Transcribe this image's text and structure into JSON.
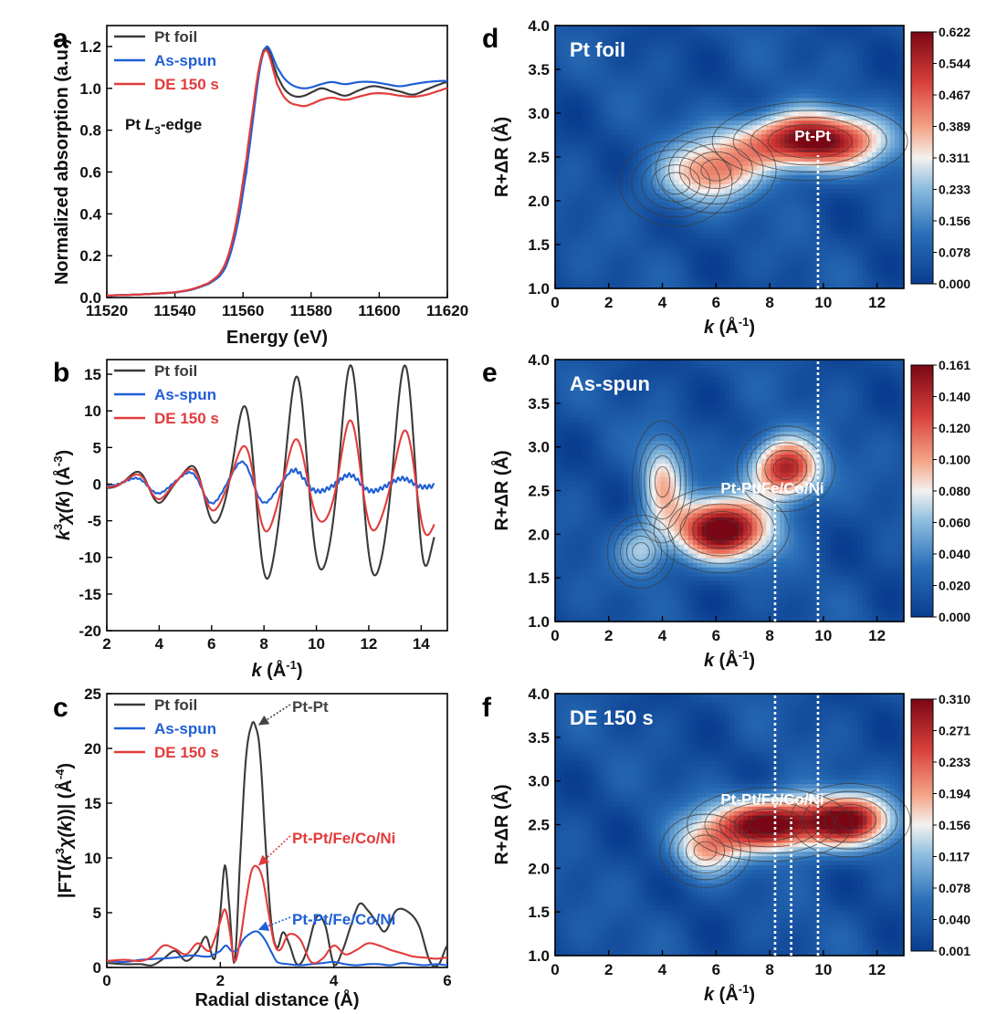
{
  "colors": {
    "pt_foil": "#3a3a3a",
    "as_spun": "#1f5fd6",
    "de_150": "#e23b3b",
    "anno_black": "#444444",
    "anno_red": "#e23b3b",
    "anno_blue": "#1f5fd6"
  },
  "chart_data": [
    {
      "panel": "a",
      "type": "line",
      "xlabel": "Energy (eV)",
      "ylabel": "Normalized absorption (a.u.)",
      "xlim": [
        11520,
        11620
      ],
      "ylim": [
        0.0,
        1.3
      ],
      "xticks": [
        "11520",
        "11540",
        "11560",
        "11580",
        "11600",
        "11620"
      ],
      "yticks": [
        "0.0",
        "0.2",
        "0.4",
        "0.6",
        "0.8",
        "1.0",
        "1.2"
      ],
      "legend": "top-left",
      "annotation": {
        "prefix": "Pt ",
        "italic": "L",
        "sub": "3",
        "suffix": "-edge"
      },
      "series": [
        {
          "name": "Pt foil",
          "x": [
            11520,
            11530,
            11540,
            11545,
            11550,
            11553,
            11555,
            11557,
            11559,
            11561,
            11562,
            11563,
            11564,
            11565,
            11566,
            11567,
            11568,
            11569,
            11570,
            11572,
            11574,
            11576,
            11578,
            11580,
            11583,
            11586,
            11590,
            11594,
            11598,
            11602,
            11606,
            11610,
            11614,
            11618,
            11620
          ],
          "y": [
            0.01,
            0.015,
            0.025,
            0.04,
            0.07,
            0.11,
            0.17,
            0.28,
            0.44,
            0.65,
            0.78,
            0.9,
            1.02,
            1.12,
            1.18,
            1.19,
            1.16,
            1.11,
            1.06,
            1.0,
            0.97,
            0.96,
            0.965,
            0.98,
            1.0,
            0.985,
            0.965,
            0.99,
            1.01,
            1.0,
            0.985,
            0.97,
            0.995,
            1.02,
            1.03
          ]
        },
        {
          "name": "As-spun",
          "x": [
            11520,
            11530,
            11540,
            11545,
            11550,
            11553,
            11555,
            11557,
            11559,
            11561,
            11562,
            11563,
            11564,
            11565,
            11566,
            11567,
            11568,
            11569,
            11570,
            11572,
            11574,
            11576,
            11578,
            11580,
            11583,
            11586,
            11590,
            11594,
            11598,
            11602,
            11606,
            11610,
            11614,
            11618,
            11620
          ],
          "y": [
            0.01,
            0.015,
            0.024,
            0.038,
            0.066,
            0.1,
            0.15,
            0.25,
            0.4,
            0.6,
            0.73,
            0.86,
            0.99,
            1.1,
            1.17,
            1.2,
            1.18,
            1.14,
            1.1,
            1.05,
            1.02,
            1.005,
            1.0,
            1.005,
            1.02,
            1.03,
            1.02,
            1.03,
            1.03,
            1.02,
            1.01,
            1.02,
            1.03,
            1.035,
            1.035
          ]
        },
        {
          "name": "DE 150 s",
          "x": [
            11520,
            11530,
            11540,
            11545,
            11550,
            11553,
            11555,
            11557,
            11559,
            11561,
            11562,
            11563,
            11564,
            11565,
            11566,
            11567,
            11568,
            11569,
            11570,
            11572,
            11574,
            11576,
            11578,
            11580,
            11583,
            11586,
            11590,
            11594,
            11598,
            11602,
            11606,
            11610,
            11614,
            11618,
            11620
          ],
          "y": [
            0.01,
            0.015,
            0.025,
            0.04,
            0.07,
            0.11,
            0.17,
            0.28,
            0.45,
            0.66,
            0.79,
            0.91,
            1.03,
            1.12,
            1.17,
            1.18,
            1.14,
            1.08,
            1.02,
            0.96,
            0.93,
            0.92,
            0.915,
            0.925,
            0.945,
            0.955,
            0.945,
            0.96,
            0.975,
            0.975,
            0.965,
            0.96,
            0.97,
            0.99,
            1.0
          ]
        }
      ]
    },
    {
      "panel": "b",
      "type": "line",
      "xlabel": "k (Å-1)",
      "xlabel_parts": {
        "italic": "k",
        "unit": " (Å",
        "sup": "-1",
        "close": ")"
      },
      "ylabel_parts": {
        "k": "k",
        "sup1": "3",
        "chi": "χ(",
        "k2": "k",
        "rest": ") (Å",
        "sup2": "-3",
        "close": ")"
      },
      "xlim": [
        2,
        15
      ],
      "ylim": [
        -20,
        17
      ],
      "xticks": [
        "2",
        "4",
        "6",
        "8",
        "10",
        "12",
        "14"
      ],
      "yticks": [
        "-20",
        "-15",
        "-10",
        "-5",
        "0",
        "5",
        "10",
        "15"
      ],
      "legend": "top-left",
      "series": [
        {
          "name": "Pt foil",
          "amp": [
            [
              2,
              0.5
            ],
            [
              3,
              1.5
            ],
            [
              4,
              2.5
            ],
            [
              5,
              2
            ],
            [
              6,
              5
            ],
            [
              7,
              9
            ],
            [
              8,
              13
            ],
            [
              9,
              14
            ],
            [
              10,
              12
            ],
            [
              11,
              15
            ],
            [
              12,
              13.5
            ],
            [
              13,
              14
            ],
            [
              14,
              15
            ],
            [
              14.5,
              9
            ]
          ],
          "freq": 3.05,
          "phase": -1.4,
          "x_end": 14.5
        },
        {
          "name": "As-spun",
          "amp": [
            [
              2,
              0.3
            ],
            [
              3,
              0.8
            ],
            [
              4,
              1.2
            ],
            [
              5,
              1.5
            ],
            [
              6,
              2.5
            ],
            [
              7,
              3
            ],
            [
              8,
              2.5
            ],
            [
              9,
              2
            ],
            [
              10,
              1
            ],
            [
              11,
              1.2
            ],
            [
              12,
              1
            ],
            [
              13,
              0.8
            ],
            [
              14,
              0.5
            ],
            [
              14.5,
              0.3
            ]
          ],
          "freq": 3.05,
          "phase": -1.2,
          "x_end": 14.5
        },
        {
          "name": "DE 150 s",
          "amp": [
            [
              2,
              0.4
            ],
            [
              3,
              1.2
            ],
            [
              4,
              2
            ],
            [
              5,
              1.8
            ],
            [
              6,
              3.5
            ],
            [
              7,
              4.5
            ],
            [
              8,
              6.5
            ],
            [
              9,
              6
            ],
            [
              10,
              5
            ],
            [
              11,
              8
            ],
            [
              12,
              7
            ],
            [
              13,
              6
            ],
            [
              14,
              8
            ],
            [
              14.5,
              7
            ]
          ],
          "freq": 3.05,
          "phase": -1.35,
          "x_end": 14.5
        }
      ]
    },
    {
      "panel": "c",
      "type": "line",
      "xlabel": "Radial distance (Å)",
      "ylabel_parts": {
        "pre": "|FT(",
        "k": "k",
        "sup": "3",
        "chi": "χ(",
        "k2": "k",
        "rest": "))| (Å",
        "sup2": "-4",
        "close": ")"
      },
      "xlim": [
        0,
        6
      ],
      "ylim": [
        0,
        25
      ],
      "xticks": [
        "0",
        "2",
        "4",
        "6"
      ],
      "yticks": [
        "0",
        "5",
        "10",
        "15",
        "20",
        "25"
      ],
      "legend": "top-left",
      "annotations": [
        {
          "text": "Pt-Pt",
          "color_key": "anno_black",
          "x": 2.62,
          "y": 22.0
        },
        {
          "text": "Pt-Pt/Fe/Co/Ni",
          "color_key": "anno_red",
          "x": 2.62,
          "y": 9.2
        },
        {
          "text": "Pt-Pt/Fe/Co/Ni",
          "color_key": "anno_blue",
          "x": 2.62,
          "y": 3.3
        }
      ],
      "series": [
        {
          "name": "Pt foil",
          "x": [
            0,
            0.3,
            0.6,
            0.8,
            1.0,
            1.2,
            1.4,
            1.6,
            1.75,
            1.9,
            2.0,
            2.08,
            2.15,
            2.25,
            2.35,
            2.45,
            2.55,
            2.62,
            2.7,
            2.8,
            2.9,
            3.0,
            3.1,
            3.2,
            3.35,
            3.5,
            3.7,
            3.85,
            4.0,
            4.15,
            4.3,
            4.45,
            4.6,
            4.75,
            4.9,
            5.1,
            5.3,
            5.5,
            5.7,
            5.85,
            6.0
          ],
          "y": [
            0.4,
            0.3,
            0.3,
            0.2,
            0.8,
            1.5,
            0.6,
            1.5,
            2.8,
            0.8,
            5,
            9.3,
            6,
            0.5,
            10,
            19,
            22.1,
            22.0,
            19.5,
            11,
            4,
            1.8,
            3.2,
            2.3,
            0.3,
            1.2,
            4.6,
            3.8,
            0.3,
            1.5,
            3.8,
            5.8,
            5.2,
            4.2,
            3.3,
            5.2,
            5.1,
            3.8,
            0.5,
            0.3,
            2.0
          ]
        },
        {
          "name": "As-spun",
          "x": [
            0,
            0.3,
            0.6,
            0.9,
            1.2,
            1.5,
            1.8,
            2.0,
            2.1,
            2.2,
            2.3,
            2.4,
            2.5,
            2.62,
            2.7,
            2.8,
            2.9,
            3.0,
            3.2,
            3.4,
            3.6,
            3.8,
            4.0,
            4.2,
            4.4,
            4.6,
            4.8,
            5.0,
            5.2,
            5.4,
            5.6,
            5.8,
            6.0
          ],
          "y": [
            0.6,
            0.5,
            0.7,
            0.8,
            0.9,
            1.1,
            1.0,
            1.5,
            2.0,
            1.5,
            1.6,
            2.5,
            3.0,
            3.3,
            3.1,
            2.4,
            1.4,
            0.5,
            0.3,
            0.2,
            0.3,
            0.4,
            0.5,
            0.3,
            0.2,
            0.3,
            0.3,
            0.2,
            0.4,
            0.3,
            0.2,
            0.3,
            0.2
          ]
        },
        {
          "name": "DE 150 s",
          "x": [
            0,
            0.3,
            0.6,
            0.8,
            1.0,
            1.2,
            1.4,
            1.6,
            1.8,
            1.9,
            2.0,
            2.08,
            2.15,
            2.25,
            2.35,
            2.45,
            2.55,
            2.65,
            2.75,
            2.85,
            2.95,
            3.05,
            3.2,
            3.4,
            3.6,
            3.8,
            4.0,
            4.2,
            4.4,
            4.6,
            4.8,
            5.0,
            5.2,
            5.4,
            5.6,
            5.8,
            6.0
          ],
          "y": [
            0.6,
            0.7,
            0.6,
            1.0,
            2.0,
            1.7,
            1.2,
            2.2,
            1.5,
            2.6,
            4.2,
            5.3,
            3.8,
            0.6,
            2.5,
            6.0,
            8.8,
            9.2,
            8.0,
            5.0,
            2.2,
            1.6,
            3.0,
            2.6,
            0.5,
            0.8,
            2.0,
            1.2,
            1.6,
            2.2,
            2.0,
            1.6,
            1.3,
            1.0,
            0.9,
            0.8,
            0.9
          ]
        }
      ]
    },
    {
      "panel": "d",
      "type": "heatmap",
      "title": "Pt foil",
      "xlim": [
        0,
        13
      ],
      "ylim": [
        1.0,
        4.0
      ],
      "xticks": [
        "0",
        "2",
        "4",
        "6",
        "8",
        "10",
        "12"
      ],
      "yticks": [
        "1.0",
        "1.5",
        "2.0",
        "2.5",
        "3.0",
        "3.5",
        "4.0"
      ],
      "colorbar": [
        "0.622",
        "0.544",
        "0.467",
        "0.389",
        "0.311",
        "0.233",
        "0.156",
        "0.078",
        "0.000"
      ],
      "annotation": "Pt-Pt",
      "annotation_pos": [
        9.6,
        2.68
      ],
      "dotted_lines": [
        {
          "x": 9.8,
          "y_from": 1.0,
          "y_to": 2.52
        }
      ],
      "peaks": [
        {
          "x": 9.5,
          "y": 2.68,
          "a": 1.0,
          "sx": 2.6,
          "sy": 0.32
        },
        {
          "x": 6.0,
          "y": 2.35,
          "a": 0.5,
          "sx": 1.6,
          "sy": 0.35
        },
        {
          "x": 4.5,
          "y": 2.2,
          "a": 0.18,
          "sx": 1.5,
          "sy": 0.35
        }
      ]
    },
    {
      "panel": "e",
      "type": "heatmap",
      "title": "As-spun",
      "xlim": [
        0,
        13
      ],
      "ylim": [
        1.0,
        4.0
      ],
      "xticks": [
        "0",
        "2",
        "4",
        "6",
        "8",
        "10",
        "12"
      ],
      "yticks": [
        "1.0",
        "1.5",
        "2.0",
        "2.5",
        "3.0",
        "3.5",
        "4.0"
      ],
      "colorbar": [
        "0.161",
        "0.140",
        "0.120",
        "0.100",
        "0.080",
        "0.060",
        "0.040",
        "0.020",
        "0.000"
      ],
      "annotation": "Pt-Pt/Fe/Co/Ni",
      "annotation_pos": [
        8.1,
        2.47
      ],
      "dotted_lines": [
        {
          "x": 8.2,
          "y_from": 1.0,
          "y_to": 2.42
        },
        {
          "x": 9.8,
          "y_from": 1.0,
          "y_to": 4.0
        }
      ],
      "peaks": [
        {
          "x": 6.2,
          "y": 2.05,
          "a": 1.0,
          "sx": 1.8,
          "sy": 0.35
        },
        {
          "x": 8.6,
          "y": 2.75,
          "a": 0.85,
          "sx": 1.3,
          "sy": 0.35
        },
        {
          "x": 4.0,
          "y": 2.6,
          "a": 0.45,
          "sx": 0.8,
          "sy": 0.5
        },
        {
          "x": 3.2,
          "y": 1.8,
          "a": 0.3,
          "sx": 0.9,
          "sy": 0.3
        }
      ]
    },
    {
      "panel": "f",
      "type": "heatmap",
      "title": "DE 150 s",
      "xlim": [
        0,
        13
      ],
      "ylim": [
        1.0,
        4.0
      ],
      "xticks": [
        "0",
        "2",
        "4",
        "6",
        "8",
        "10",
        "12"
      ],
      "yticks": [
        "1.0",
        "1.5",
        "2.0",
        "2.5",
        "3.0",
        "3.5",
        "4.0"
      ],
      "colorbar": [
        "0.310",
        "0.271",
        "0.233",
        "0.194",
        "0.156",
        "0.117",
        "0.078",
        "0.040",
        "0.001"
      ],
      "annotation": "Pt-Pt/Fe/Co/Ni",
      "annotation_pos": [
        8.1,
        2.73
      ],
      "dotted_lines": [
        {
          "x": 8.2,
          "y_from": 1.0,
          "y_to": 4.0
        },
        {
          "x": 8.8,
          "y_from": 1.0,
          "y_to": 2.58
        },
        {
          "x": 9.8,
          "y_from": 1.0,
          "y_to": 4.0
        }
      ],
      "peaks": [
        {
          "x": 8.0,
          "y": 2.5,
          "a": 1.0,
          "sx": 2.2,
          "sy": 0.3
        },
        {
          "x": 11.0,
          "y": 2.55,
          "a": 0.8,
          "sx": 1.6,
          "sy": 0.3
        },
        {
          "x": 5.6,
          "y": 2.2,
          "a": 0.45,
          "sx": 1.2,
          "sy": 0.3
        }
      ]
    }
  ]
}
